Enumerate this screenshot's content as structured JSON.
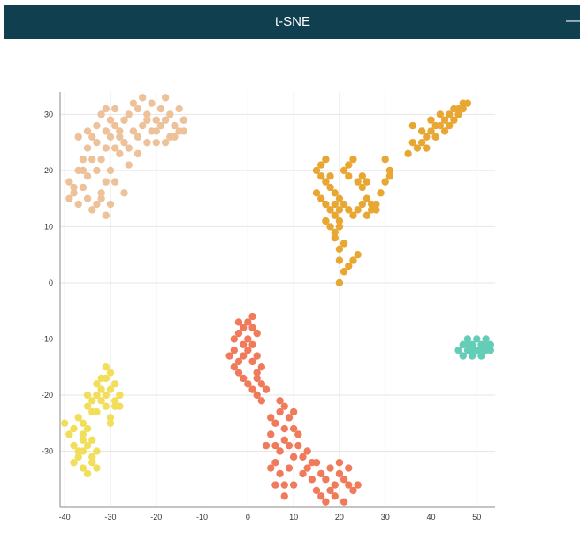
{
  "window": {
    "title": "t-SNE",
    "minimize_label": "—"
  },
  "colors": {
    "titlebar": "#103f4f",
    "grid": "#e6e6e6",
    "axis": "#888888"
  },
  "chart_data": {
    "type": "scatter",
    "title": "t-SNE",
    "xlabel": "",
    "ylabel": "",
    "xlim": [
      -41,
      54
    ],
    "ylim": [
      -40,
      34
    ],
    "grid": true,
    "legend": "none",
    "x_ticks": [
      -40,
      -30,
      -20,
      -10,
      0,
      10,
      20,
      30,
      40,
      50
    ],
    "y_ticks": [
      30,
      20,
      10,
      0,
      -10,
      -20,
      -30
    ],
    "x_tick_labels": [
      "-40",
      "-30",
      "-20",
      "-10",
      "0",
      "10",
      "20",
      "30",
      "40",
      "50"
    ],
    "y_tick_labels": [
      "30",
      "20",
      "10",
      "0",
      "-10",
      "-20",
      "-30"
    ],
    "series": [
      {
        "color": "#edc29a",
        "points": [
          [
            -39,
            15
          ],
          [
            -38,
            17
          ],
          [
            -37,
            20
          ],
          [
            -36,
            22
          ],
          [
            -35,
            24
          ],
          [
            -34,
            26
          ],
          [
            -33,
            28
          ],
          [
            -32,
            30
          ],
          [
            -31,
            31
          ],
          [
            -30,
            29
          ],
          [
            -29,
            31
          ],
          [
            -28,
            27
          ],
          [
            -27,
            29
          ],
          [
            -26,
            30
          ],
          [
            -25,
            32
          ],
          [
            -24,
            31
          ],
          [
            -23,
            33
          ],
          [
            -22,
            30
          ],
          [
            -21,
            32
          ],
          [
            -20,
            29
          ],
          [
            -19,
            31
          ],
          [
            -18,
            33
          ],
          [
            -17,
            30
          ],
          [
            -16,
            28
          ],
          [
            -15,
            31
          ],
          [
            -14,
            29
          ],
          [
            -14,
            27
          ],
          [
            -16,
            26
          ],
          [
            -18,
            25
          ],
          [
            -20,
            27
          ],
          [
            -22,
            25
          ],
          [
            -24,
            23
          ],
          [
            -26,
            21
          ],
          [
            -28,
            23
          ],
          [
            -30,
            20
          ],
          [
            -31,
            18
          ],
          [
            -32,
            16
          ],
          [
            -33,
            14
          ],
          [
            -34,
            13
          ],
          [
            -35,
            15
          ],
          [
            -36,
            17
          ],
          [
            -37,
            14
          ],
          [
            -38,
            16
          ],
          [
            -39,
            18
          ],
          [
            -33,
            20
          ],
          [
            -34,
            22
          ],
          [
            -35,
            19
          ],
          [
            -36,
            20
          ],
          [
            -32,
            22
          ],
          [
            -31,
            24
          ],
          [
            -30,
            26
          ],
          [
            -29,
            24
          ],
          [
            -28,
            26
          ],
          [
            -27,
            25
          ],
          [
            -25,
            27
          ],
          [
            -23,
            28
          ],
          [
            -21,
            27
          ],
          [
            -19,
            28
          ],
          [
            -17,
            26
          ],
          [
            -15,
            27
          ],
          [
            -30,
            14
          ],
          [
            -31,
            12
          ],
          [
            -32,
            15
          ],
          [
            -29,
            18
          ],
          [
            -27,
            16
          ],
          [
            -37,
            26
          ],
          [
            -35,
            27
          ],
          [
            -33,
            25
          ],
          [
            -31,
            27
          ],
          [
            -29,
            28
          ],
          [
            -26,
            24
          ],
          [
            -24,
            26
          ],
          [
            -22,
            29
          ],
          [
            -20,
            25
          ],
          [
            -18,
            29
          ]
        ]
      },
      {
        "color": "#e8a632",
        "points": [
          [
            37,
            24
          ],
          [
            38,
            25
          ],
          [
            39,
            26
          ],
          [
            40,
            27
          ],
          [
            41,
            28
          ],
          [
            42,
            28
          ],
          [
            43,
            29
          ],
          [
            44,
            30
          ],
          [
            45,
            31
          ],
          [
            46,
            31
          ],
          [
            47,
            32
          ],
          [
            48,
            32
          ],
          [
            38,
            27
          ],
          [
            36,
            25
          ],
          [
            40,
            29
          ],
          [
            42,
            30
          ],
          [
            44,
            28
          ],
          [
            46,
            30
          ],
          [
            35,
            23
          ],
          [
            39,
            24
          ],
          [
            41,
            26
          ],
          [
            43,
            27
          ],
          [
            45,
            29
          ],
          [
            47,
            31
          ],
          [
            36,
            28
          ],
          [
            30,
            22
          ],
          [
            31,
            20
          ],
          [
            30,
            18
          ],
          [
            29,
            16
          ],
          [
            31,
            19
          ],
          [
            28,
            14
          ],
          [
            27,
            13
          ],
          [
            26,
            12
          ],
          [
            25,
            14
          ],
          [
            24,
            13
          ],
          [
            23,
            12
          ],
          [
            22,
            13
          ],
          [
            21,
            14
          ],
          [
            20,
            15
          ],
          [
            19,
            16
          ],
          [
            18,
            17
          ],
          [
            17,
            18
          ],
          [
            16,
            19
          ],
          [
            15,
            20
          ],
          [
            17,
            22
          ],
          [
            16,
            21
          ],
          [
            18,
            19
          ],
          [
            19,
            12
          ],
          [
            20,
            10
          ],
          [
            19,
            8
          ],
          [
            20,
            6
          ],
          [
            20,
            4
          ],
          [
            21,
            2
          ],
          [
            20,
            0
          ],
          [
            22,
            3
          ],
          [
            23,
            4
          ],
          [
            24,
            5
          ],
          [
            19,
            14
          ],
          [
            20,
            13
          ],
          [
            21,
            20
          ],
          [
            22,
            21
          ],
          [
            23,
            22
          ],
          [
            22,
            19
          ],
          [
            24,
            18
          ],
          [
            25,
            17
          ],
          [
            26,
            15
          ],
          [
            27,
            14
          ],
          [
            28,
            13
          ],
          [
            25,
            19
          ],
          [
            26,
            18
          ],
          [
            15,
            16
          ],
          [
            16,
            15
          ],
          [
            17,
            14
          ],
          [
            18,
            13
          ],
          [
            17,
            11
          ],
          [
            18,
            10
          ],
          [
            19,
            9
          ],
          [
            20,
            11
          ],
          [
            21,
            7
          ]
        ]
      },
      {
        "color": "#f07b5c",
        "points": [
          [
            -3,
            -10
          ],
          [
            -2,
            -9
          ],
          [
            -1,
            -8
          ],
          [
            0,
            -7
          ],
          [
            1,
            -6
          ],
          [
            2,
            -9
          ],
          [
            1,
            -11
          ],
          [
            0,
            -12
          ],
          [
            -1,
            -13
          ],
          [
            -2,
            -14
          ],
          [
            -3,
            -15
          ],
          [
            -2,
            -16
          ],
          [
            -1,
            -17
          ],
          [
            0,
            -18
          ],
          [
            1,
            -19
          ],
          [
            2,
            -20
          ],
          [
            3,
            -21
          ],
          [
            3,
            -18
          ],
          [
            2,
            -16
          ],
          [
            1,
            -14
          ],
          [
            0,
            -10
          ],
          [
            -1,
            -11
          ],
          [
            -4,
            -13
          ],
          [
            -3,
            -12
          ],
          [
            2,
            -13
          ],
          [
            3,
            -15
          ],
          [
            1,
            -8
          ],
          [
            -2,
            -7
          ],
          [
            4,
            -19
          ],
          [
            2,
            -17
          ],
          [
            4,
            -29
          ],
          [
            5,
            -27
          ],
          [
            6,
            -25
          ],
          [
            7,
            -23
          ],
          [
            8,
            -22
          ],
          [
            9,
            -24
          ],
          [
            10,
            -26
          ],
          [
            8,
            -28
          ],
          [
            7,
            -30
          ],
          [
            6,
            -32
          ],
          [
            7,
            -34
          ],
          [
            8,
            -36
          ],
          [
            9,
            -33
          ],
          [
            10,
            -31
          ],
          [
            11,
            -29
          ],
          [
            12,
            -31
          ],
          [
            13,
            -33
          ],
          [
            14,
            -35
          ],
          [
            15,
            -37
          ],
          [
            16,
            -38
          ],
          [
            17,
            -39
          ],
          [
            18,
            -37
          ],
          [
            19,
            -36
          ],
          [
            20,
            -34
          ],
          [
            21,
            -35
          ],
          [
            22,
            -36
          ],
          [
            23,
            -37
          ],
          [
            24,
            -36
          ],
          [
            22,
            -33
          ],
          [
            20,
            -32
          ],
          [
            18,
            -33
          ],
          [
            16,
            -34
          ],
          [
            14,
            -32
          ],
          [
            12,
            -34
          ],
          [
            10,
            -36
          ],
          [
            8,
            -38
          ],
          [
            6,
            -36
          ],
          [
            5,
            -33
          ],
          [
            9,
            -29
          ],
          [
            11,
            -27
          ],
          [
            13,
            -30
          ],
          [
            15,
            -32
          ],
          [
            17,
            -35
          ],
          [
            19,
            -38
          ],
          [
            21,
            -39
          ],
          [
            6,
            -29
          ],
          [
            8,
            -26
          ],
          [
            10,
            -23
          ],
          [
            5,
            -24
          ],
          [
            7,
            -21
          ]
        ]
      },
      {
        "color": "#f1df5b",
        "points": [
          [
            -40,
            -25
          ],
          [
            -39,
            -27
          ],
          [
            -38,
            -29
          ],
          [
            -37,
            -31
          ],
          [
            -36,
            -33
          ],
          [
            -35,
            -34
          ],
          [
            -34,
            -32
          ],
          [
            -33,
            -30
          ],
          [
            -34,
            -28
          ],
          [
            -35,
            -26
          ],
          [
            -36,
            -28
          ],
          [
            -37,
            -30
          ],
          [
            -38,
            -32
          ],
          [
            -36,
            -30
          ],
          [
            -35,
            -29
          ],
          [
            -34,
            -31
          ],
          [
            -33,
            -33
          ],
          [
            -36,
            -25
          ],
          [
            -37,
            -24
          ],
          [
            -35,
            -22
          ],
          [
            -34,
            -21
          ],
          [
            -33,
            -20
          ],
          [
            -32,
            -19
          ],
          [
            -31,
            -17
          ],
          [
            -30,
            -16
          ],
          [
            -29,
            -18
          ],
          [
            -28,
            -20
          ],
          [
            -29,
            -22
          ],
          [
            -30,
            -24
          ],
          [
            -31,
            -22
          ],
          [
            -32,
            -21
          ],
          [
            -33,
            -23
          ],
          [
            -31,
            -15
          ],
          [
            -30,
            -19
          ],
          [
            -29,
            -21
          ],
          [
            -32,
            -17
          ],
          [
            -34,
            -23
          ],
          [
            -35,
            -20
          ],
          [
            -33,
            -18
          ],
          [
            -28,
            -22
          ],
          [
            -30,
            -25
          ],
          [
            -31,
            -20
          ],
          [
            -36,
            -27
          ],
          [
            -38,
            -26
          ]
        ]
      },
      {
        "color": "#63cdb8",
        "points": [
          [
            46,
            -12
          ],
          [
            47,
            -11
          ],
          [
            48,
            -12
          ],
          [
            49,
            -11
          ],
          [
            50,
            -12
          ],
          [
            51,
            -11
          ],
          [
            52,
            -12
          ],
          [
            53,
            -11
          ],
          [
            47,
            -13
          ],
          [
            49,
            -13
          ],
          [
            51,
            -13
          ],
          [
            53,
            -12
          ],
          [
            48,
            -10
          ],
          [
            50,
            -10
          ],
          [
            52,
            -10
          ],
          [
            50,
            -12
          ],
          [
            51,
            -12
          ],
          [
            49,
            -12
          ],
          [
            48,
            -11
          ],
          [
            52,
            -11
          ]
        ]
      }
    ]
  }
}
